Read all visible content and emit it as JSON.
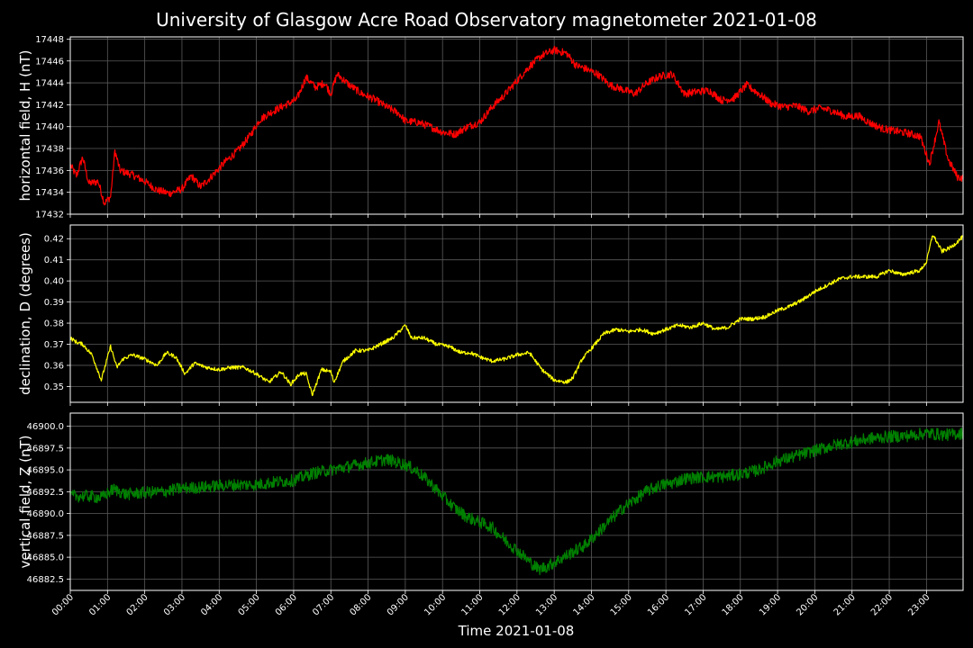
{
  "chart_data": {
    "type": "line",
    "title": "University of Glasgow Acre Road Observatory magnetometer 2021-01-08",
    "xlabel": "Time 2021-01-08",
    "x_tick_labels": [
      "00:00",
      "01:00",
      "02:00",
      "03:00",
      "04:00",
      "05:00",
      "06:00",
      "07:00",
      "08:00",
      "09:00",
      "10:00",
      "11:00",
      "12:00",
      "13:00",
      "14:00",
      "15:00",
      "16:00",
      "17:00",
      "18:00",
      "19:00",
      "20:00",
      "21:00",
      "22:00",
      "23:00"
    ],
    "xlim": [
      "00:00",
      "23:59"
    ],
    "grid": true,
    "background": "#000000",
    "panels": [
      {
        "ylabel": "horizontal field, H (nT)",
        "color": "#ff0000",
        "ylim": [
          17432,
          17448.2
        ],
        "yticks": [
          "17432",
          "17434",
          "17436",
          "17438",
          "17440",
          "17442",
          "17444",
          "17446",
          "17448"
        ],
        "noise": 0.35,
        "series": [
          [
            "00:00",
            17436.5
          ],
          [
            "00:10",
            17435.5
          ],
          [
            "00:20",
            17437.2
          ],
          [
            "00:30",
            17434.8
          ],
          [
            "00:45",
            17435.0
          ],
          [
            "00:55",
            17433.0
          ],
          [
            "01:05",
            17433.6
          ],
          [
            "01:12",
            17437.8
          ],
          [
            "01:20",
            17436.0
          ],
          [
            "01:40",
            17435.6
          ],
          [
            "02:00",
            17435.0
          ],
          [
            "02:20",
            17434.2
          ],
          [
            "02:40",
            17433.9
          ],
          [
            "03:00",
            17434.3
          ],
          [
            "03:15",
            17435.5
          ],
          [
            "03:30",
            17434.5
          ],
          [
            "03:45",
            17435.3
          ],
          [
            "04:10",
            17436.8
          ],
          [
            "04:30",
            17437.8
          ],
          [
            "04:50",
            17439.2
          ],
          [
            "05:05",
            17440.6
          ],
          [
            "05:20",
            17441.2
          ],
          [
            "05:40",
            17441.8
          ],
          [
            "05:55",
            17442.2
          ],
          [
            "06:05",
            17442.5
          ],
          [
            "06:20",
            17444.5
          ],
          [
            "06:35",
            17443.6
          ],
          [
            "06:50",
            17444.0
          ],
          [
            "07:00",
            17443.0
          ],
          [
            "07:10",
            17444.8
          ],
          [
            "07:30",
            17443.8
          ],
          [
            "07:50",
            17443.0
          ],
          [
            "08:10",
            17442.5
          ],
          [
            "08:30",
            17441.8
          ],
          [
            "08:50",
            17441.2
          ],
          [
            "09:00",
            17440.5
          ],
          [
            "09:20",
            17440.4
          ],
          [
            "09:40",
            17440.0
          ],
          [
            "10:00",
            17439.5
          ],
          [
            "10:20",
            17439.3
          ],
          [
            "10:40",
            17440.0
          ],
          [
            "11:00",
            17440.4
          ],
          [
            "11:20",
            17441.8
          ],
          [
            "11:40",
            17442.9
          ],
          [
            "12:00",
            17444.2
          ],
          [
            "12:20",
            17445.5
          ],
          [
            "12:40",
            17446.5
          ],
          [
            "13:00",
            17447.0
          ],
          [
            "13:20",
            17446.7
          ],
          [
            "13:35",
            17445.6
          ],
          [
            "13:50",
            17445.3
          ],
          [
            "14:10",
            17444.8
          ],
          [
            "14:30",
            17443.8
          ],
          [
            "14:50",
            17443.4
          ],
          [
            "15:10",
            17443.0
          ],
          [
            "15:30",
            17444.0
          ],
          [
            "15:50",
            17444.6
          ],
          [
            "16:10",
            17444.8
          ],
          [
            "16:30",
            17443.0
          ],
          [
            "16:50",
            17443.2
          ],
          [
            "17:10",
            17443.3
          ],
          [
            "17:30",
            17442.4
          ],
          [
            "17:50",
            17442.6
          ],
          [
            "18:10",
            17443.8
          ],
          [
            "18:30",
            17443.0
          ],
          [
            "18:50",
            17442.1
          ],
          [
            "19:10",
            17441.8
          ],
          [
            "19:30",
            17441.9
          ],
          [
            "19:50",
            17441.4
          ],
          [
            "20:10",
            17441.7
          ],
          [
            "20:30",
            17441.4
          ],
          [
            "20:50",
            17440.9
          ],
          [
            "21:10",
            17441.0
          ],
          [
            "21:30",
            17440.3
          ],
          [
            "21:50",
            17439.8
          ],
          [
            "22:10",
            17439.6
          ],
          [
            "22:30",
            17439.4
          ],
          [
            "22:50",
            17439.1
          ],
          [
            "23:05",
            17436.6
          ],
          [
            "23:20",
            17440.4
          ],
          [
            "23:35",
            17437.0
          ],
          [
            "23:50",
            17435.4
          ],
          [
            "23:59",
            17435.3
          ]
        ]
      },
      {
        "ylabel": "declination, D (degrees)",
        "color": "#ffff00",
        "ylim": [
          0.3425,
          0.4265
        ],
        "yticks": [
          "0.35",
          "0.36",
          "0.37",
          "0.38",
          "0.39",
          "0.40",
          "0.41",
          "0.42"
        ],
        "noise": 0.0009,
        "series": [
          [
            "00:00",
            0.373
          ],
          [
            "00:10",
            0.371
          ],
          [
            "00:20",
            0.37
          ],
          [
            "00:35",
            0.365
          ],
          [
            "00:50",
            0.353
          ],
          [
            "01:05",
            0.369
          ],
          [
            "01:15",
            0.359
          ],
          [
            "01:25",
            0.363
          ],
          [
            "01:40",
            0.365
          ],
          [
            "02:00",
            0.363
          ],
          [
            "02:20",
            0.36
          ],
          [
            "02:35",
            0.366
          ],
          [
            "02:50",
            0.364
          ],
          [
            "03:05",
            0.356
          ],
          [
            "03:20",
            0.361
          ],
          [
            "03:40",
            0.359
          ],
          [
            "04:00",
            0.358
          ],
          [
            "04:20",
            0.359
          ],
          [
            "04:40",
            0.359
          ],
          [
            "05:00",
            0.356
          ],
          [
            "05:20",
            0.352
          ],
          [
            "05:40",
            0.357
          ],
          [
            "05:55",
            0.351
          ],
          [
            "06:10",
            0.356
          ],
          [
            "06:20",
            0.356
          ],
          [
            "06:30",
            0.346
          ],
          [
            "06:45",
            0.358
          ],
          [
            "07:00",
            0.357
          ],
          [
            "07:05",
            0.352
          ],
          [
            "07:20",
            0.362
          ],
          [
            "07:40",
            0.367
          ],
          [
            "08:00",
            0.367
          ],
          [
            "08:20",
            0.37
          ],
          [
            "08:40",
            0.373
          ],
          [
            "09:00",
            0.379
          ],
          [
            "09:10",
            0.373
          ],
          [
            "09:30",
            0.373
          ],
          [
            "09:50",
            0.37
          ],
          [
            "10:10",
            0.369
          ],
          [
            "10:30",
            0.366
          ],
          [
            "10:45",
            0.366
          ],
          [
            "11:00",
            0.364
          ],
          [
            "11:20",
            0.362
          ],
          [
            "11:40",
            0.363
          ],
          [
            "12:00",
            0.365
          ],
          [
            "12:20",
            0.366
          ],
          [
            "12:40",
            0.358
          ],
          [
            "13:00",
            0.353
          ],
          [
            "13:20",
            0.352
          ],
          [
            "13:30",
            0.354
          ],
          [
            "13:45",
            0.363
          ],
          [
            "14:00",
            0.368
          ],
          [
            "14:20",
            0.375
          ],
          [
            "14:40",
            0.377
          ],
          [
            "15:00",
            0.376
          ],
          [
            "15:20",
            0.377
          ],
          [
            "15:40",
            0.375
          ],
          [
            "16:00",
            0.377
          ],
          [
            "16:20",
            0.379
          ],
          [
            "16:40",
            0.378
          ],
          [
            "17:00",
            0.38
          ],
          [
            "17:20",
            0.377
          ],
          [
            "17:40",
            0.378
          ],
          [
            "18:00",
            0.382
          ],
          [
            "18:20",
            0.382
          ],
          [
            "18:40",
            0.383
          ],
          [
            "19:00",
            0.386
          ],
          [
            "19:20",
            0.388
          ],
          [
            "19:40",
            0.391
          ],
          [
            "20:00",
            0.395
          ],
          [
            "20:20",
            0.398
          ],
          [
            "20:40",
            0.401
          ],
          [
            "21:00",
            0.402
          ],
          [
            "21:20",
            0.402
          ],
          [
            "21:40",
            0.402
          ],
          [
            "22:00",
            0.405
          ],
          [
            "22:20",
            0.403
          ],
          [
            "22:35",
            0.404
          ],
          [
            "22:50",
            0.405
          ],
          [
            "23:00",
            0.409
          ],
          [
            "23:10",
            0.422
          ],
          [
            "23:25",
            0.414
          ],
          [
            "23:40",
            0.416
          ],
          [
            "23:59",
            0.421
          ]
        ]
      },
      {
        "ylabel": "vertical field, Z (nT)",
        "color": "#008000",
        "ylim": [
          46881.2,
          46901.5
        ],
        "yticks": [
          "46882.5",
          "46885.0",
          "46887.5",
          "46890.0",
          "46892.5",
          "46895.0",
          "46897.5",
          "46900.0"
        ],
        "noise": 0.7,
        "series": [
          [
            "00:00",
            46892.0
          ],
          [
            "00:30",
            46892.0
          ],
          [
            "00:50",
            46891.8
          ],
          [
            "01:10",
            46892.8
          ],
          [
            "01:30",
            46892.2
          ],
          [
            "02:00",
            46892.4
          ],
          [
            "02:30",
            46892.5
          ],
          [
            "03:00",
            46892.9
          ],
          [
            "03:30",
            46893.0
          ],
          [
            "04:00",
            46893.2
          ],
          [
            "04:30",
            46893.3
          ],
          [
            "05:00",
            46893.3
          ],
          [
            "05:30",
            46893.6
          ],
          [
            "06:00",
            46893.8
          ],
          [
            "06:30",
            46894.6
          ],
          [
            "07:00",
            46895.0
          ],
          [
            "07:30",
            46895.4
          ],
          [
            "08:00",
            46895.8
          ],
          [
            "08:30",
            46896.2
          ],
          [
            "09:00",
            46895.6
          ],
          [
            "09:20",
            46894.8
          ],
          [
            "09:40",
            46893.5
          ],
          [
            "10:00",
            46892.0
          ],
          [
            "10:20",
            46890.6
          ],
          [
            "10:40",
            46889.6
          ],
          [
            "11:00",
            46889.0
          ],
          [
            "11:20",
            46888.4
          ],
          [
            "11:40",
            46887.0
          ],
          [
            "12:00",
            46885.8
          ],
          [
            "12:20",
            46884.5
          ],
          [
            "12:35",
            46883.6
          ],
          [
            "12:50",
            46884.0
          ],
          [
            "13:10",
            46884.8
          ],
          [
            "13:30",
            46885.6
          ],
          [
            "13:50",
            46886.4
          ],
          [
            "14:10",
            46887.8
          ],
          [
            "14:30",
            46889.2
          ],
          [
            "14:50",
            46890.6
          ],
          [
            "15:10",
            46891.6
          ],
          [
            "15:30",
            46892.6
          ],
          [
            "15:50",
            46893.2
          ],
          [
            "16:10",
            46893.5
          ],
          [
            "16:30",
            46894.0
          ],
          [
            "17:00",
            46894.2
          ],
          [
            "17:30",
            46894.2
          ],
          [
            "18:00",
            46894.5
          ],
          [
            "18:30",
            46895.0
          ],
          [
            "19:00",
            46896.0
          ],
          [
            "19:30",
            46896.6
          ],
          [
            "20:00",
            46897.2
          ],
          [
            "20:30",
            46897.8
          ],
          [
            "21:00",
            46898.2
          ],
          [
            "21:30",
            46898.6
          ],
          [
            "22:00",
            46898.8
          ],
          [
            "22:30",
            46898.9
          ],
          [
            "23:00",
            46899.2
          ],
          [
            "23:30",
            46899.0
          ],
          [
            "23:59",
            46899.2
          ]
        ]
      }
    ]
  }
}
